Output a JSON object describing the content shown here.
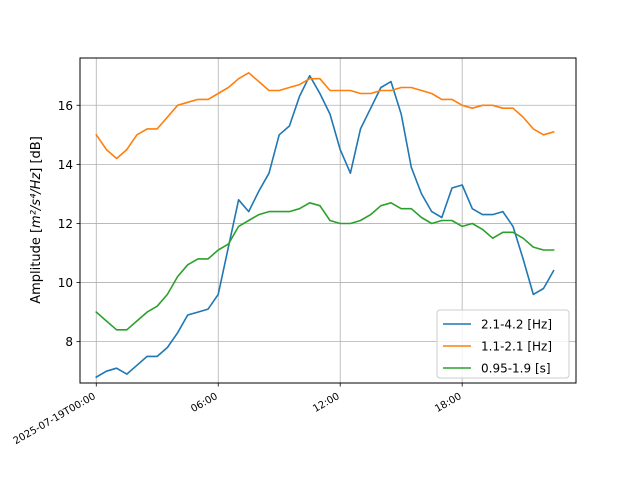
{
  "chart_data": {
    "type": "line",
    "ylabel_main": "Amplitude [",
    "ylabel_math": "m²/s⁴/Hz",
    "ylabel_unit": "] [dB]",
    "x_unit": "hours",
    "xlim": [
      -0.8,
      23.6
    ],
    "ylim": [
      6.6,
      17.6
    ],
    "x_ticks": [
      {
        "value": 0,
        "label": "2025-07-19T00:00"
      },
      {
        "value": 6,
        "label": "06:00"
      },
      {
        "value": 12,
        "label": "12:00"
      },
      {
        "value": 18,
        "label": "18:00"
      }
    ],
    "y_ticks": [
      8,
      10,
      12,
      14,
      16
    ],
    "grid": true,
    "legend_position": "bottom-right",
    "x": [
      0,
      0.5,
      1,
      1.5,
      2,
      2.5,
      3,
      3.5,
      4,
      4.5,
      5,
      5.5,
      6,
      6.5,
      7,
      7.5,
      8,
      8.5,
      9,
      9.5,
      10,
      10.5,
      11,
      11.5,
      12,
      12.5,
      13,
      13.5,
      14,
      14.5,
      15,
      15.5,
      16,
      16.5,
      17,
      17.5,
      18,
      18.5,
      19,
      19.5,
      20,
      20.5,
      21,
      21.5,
      22,
      22.5
    ],
    "series": [
      {
        "name": "2.1-4.2 [Hz]",
        "color": "#1f77b4",
        "values": [
          6.8,
          7.0,
          7.1,
          6.9,
          7.2,
          7.5,
          7.5,
          7.8,
          8.3,
          8.9,
          9.0,
          9.1,
          9.6,
          11.2,
          12.8,
          12.4,
          13.1,
          13.7,
          15.0,
          15.3,
          16.3,
          17.0,
          16.4,
          15.7,
          14.5,
          13.7,
          15.2,
          15.9,
          16.6,
          16.8,
          15.7,
          13.9,
          13.0,
          12.4,
          12.2,
          13.2,
          13.3,
          12.5,
          12.3,
          12.3,
          12.4,
          11.9,
          10.8,
          9.6,
          9.8,
          10.4
        ]
      },
      {
        "name": "1.1-2.1 [Hz]",
        "color": "#ff7f0e",
        "values": [
          15.0,
          14.5,
          14.2,
          14.5,
          15.0,
          15.2,
          15.2,
          15.6,
          16.0,
          16.1,
          16.2,
          16.2,
          16.4,
          16.6,
          16.9,
          17.1,
          16.8,
          16.5,
          16.5,
          16.6,
          16.7,
          16.9,
          16.9,
          16.5,
          16.5,
          16.5,
          16.4,
          16.4,
          16.5,
          16.5,
          16.6,
          16.6,
          16.5,
          16.4,
          16.2,
          16.2,
          16.0,
          15.9,
          16.0,
          16.0,
          15.9,
          15.9,
          15.6,
          15.2,
          15.0,
          15.1
        ]
      },
      {
        "name": "0.95-1.9 [s]",
        "color": "#2ca02c",
        "values": [
          9.0,
          8.7,
          8.4,
          8.4,
          8.7,
          9.0,
          9.2,
          9.6,
          10.2,
          10.6,
          10.8,
          10.8,
          11.1,
          11.3,
          11.9,
          12.1,
          12.3,
          12.4,
          12.4,
          12.4,
          12.5,
          12.7,
          12.6,
          12.1,
          12.0,
          12.0,
          12.1,
          12.3,
          12.6,
          12.7,
          12.5,
          12.5,
          12.2,
          12.0,
          12.1,
          12.1,
          11.9,
          12.0,
          11.8,
          11.5,
          11.7,
          11.7,
          11.5,
          11.2,
          11.1,
          11.1
        ]
      }
    ]
  }
}
